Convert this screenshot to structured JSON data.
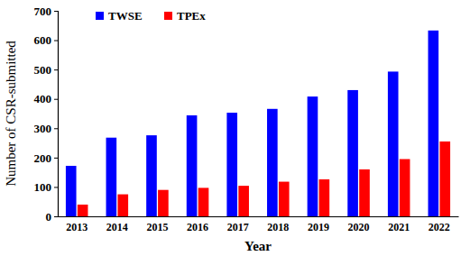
{
  "chart_data": {
    "type": "bar",
    "x_label": "Year",
    "y_label": "Number of CSR-submitted",
    "categories": [
      "2013",
      "2014",
      "2015",
      "2016",
      "2017",
      "2018",
      "2019",
      "2020",
      "2021",
      "2022"
    ],
    "series": [
      {
        "name": "TWSE",
        "color": "#0000ff",
        "values": [
          172,
          268,
          276,
          344,
          353,
          366,
          408,
          430,
          493,
          633
        ]
      },
      {
        "name": "TPEx",
        "color": "#ff0000",
        "values": [
          40,
          75,
          90,
          97,
          104,
          118,
          126,
          160,
          195,
          255
        ]
      }
    ],
    "ylim": [
      0,
      700
    ],
    "yticks": [
      0,
      100,
      200,
      300,
      400,
      500,
      600,
      700
    ],
    "grid": false,
    "legend": "upper left"
  }
}
